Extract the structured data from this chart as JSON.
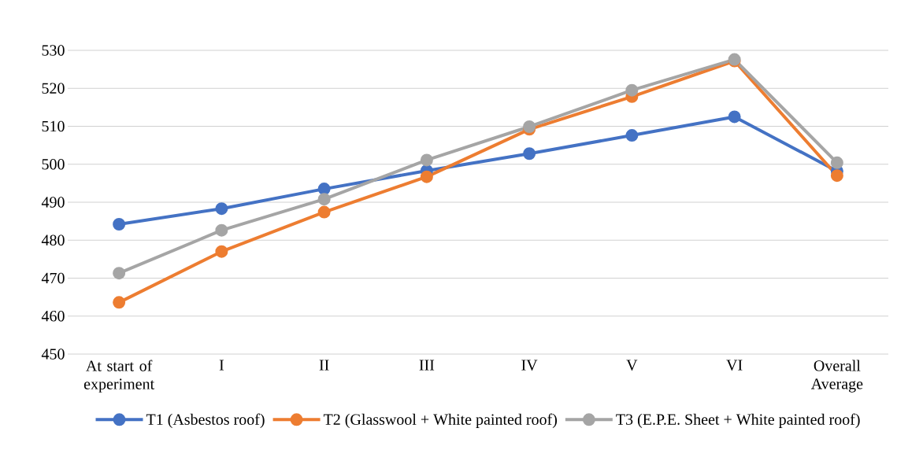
{
  "chart_data": {
    "type": "line",
    "categories": [
      "At start of experiment",
      "I",
      "II",
      "III",
      "IV",
      "V",
      "VI",
      "Overall Average"
    ],
    "series": [
      {
        "name": "T1 (Asbestos roof)",
        "color": "#4472c4",
        "values": [
          484.2,
          488.3,
          493.5,
          498.3,
          502.8,
          507.6,
          512.5,
          498.2
        ]
      },
      {
        "name": "T2 (Glasswool + White painted roof)",
        "color": "#ed7d31",
        "values": [
          463.6,
          477.0,
          487.4,
          496.7,
          509.2,
          517.8,
          527.2,
          497.0
        ]
      },
      {
        "name": "T3 (E.P.E. Sheet + White painted roof)",
        "color": "#a5a5a5",
        "values": [
          471.3,
          482.6,
          490.8,
          501.1,
          509.9,
          519.5,
          527.6,
          500.4
        ]
      }
    ],
    "ylim": [
      450,
      530
    ],
    "yticks": [
      450,
      460,
      470,
      480,
      490,
      500,
      510,
      520,
      530
    ],
    "grid": "y",
    "legend": "bottom",
    "marker": "circle",
    "line_style": "solid"
  }
}
